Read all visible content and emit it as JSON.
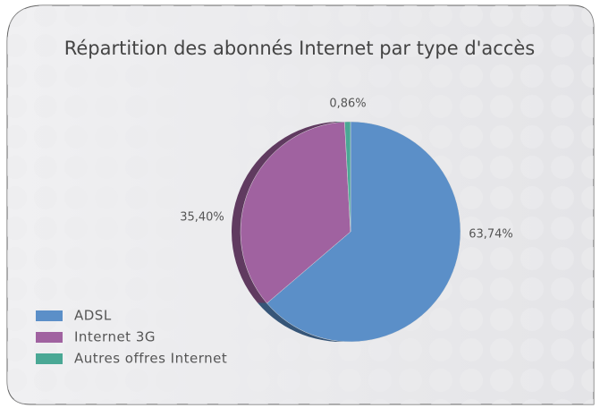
{
  "chart_data": {
    "type": "pie",
    "title": "Répartition des abonnés Internet par type d'accès",
    "categories": [
      "ADSL",
      "Internet 3G",
      "Autres offres Internet"
    ],
    "values": [
      63.74,
      35.4,
      0.86
    ],
    "value_labels": [
      "63,74%",
      "35,40%",
      "0,86%"
    ],
    "colors": [
      "#5b8fc8",
      "#a062a0",
      "#4aa895"
    ],
    "legend": "bottom-left"
  }
}
